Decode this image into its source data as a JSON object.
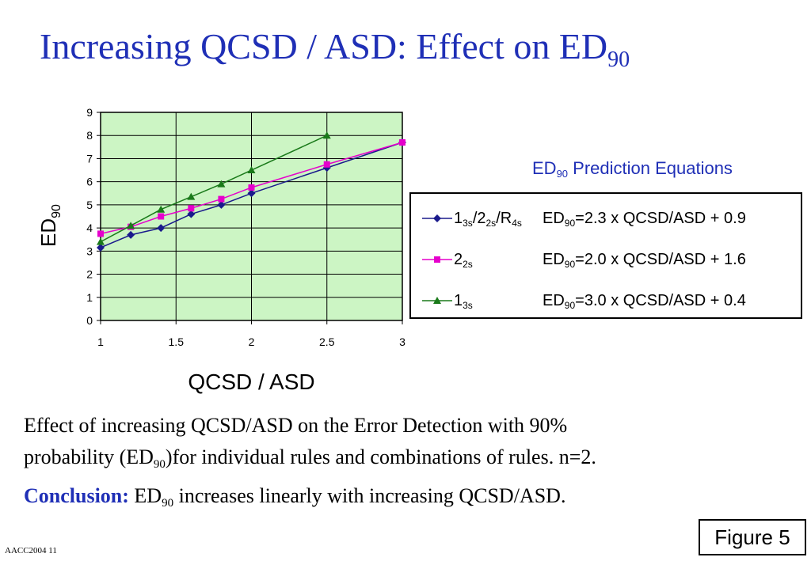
{
  "title": {
    "main": "Increasing QCSD / ASD: Effect on ED",
    "sub": "90"
  },
  "equations_title": {
    "main": "ED",
    "sub": "90",
    "rest": " Prediction Equations"
  },
  "caption": {
    "line1": "Effect of increasing QCSD/ASD on the Error Detection with 90%",
    "line2_a": "probability (ED",
    "line2_sub": "90",
    "line2_b": ")for individual rules and combinations of rules. n=2.",
    "conclusion_label": "Conclusion:",
    "conclusion_a": " ED",
    "conclusion_sub": "90",
    "conclusion_b": " increases linearly with increasing QCSD/ASD."
  },
  "footer": "AACC2004  11",
  "figure_label": "Figure 5",
  "colors": {
    "title": "#1f2fb6",
    "plot_bg": "#ccf5c4",
    "s1": "#1a1a8c",
    "s2": "#e600cc",
    "s3": "#1a7a1a"
  },
  "chart_data": {
    "type": "line",
    "xlabel": "QCSD / ASD",
    "ylabel": {
      "main": "ED",
      "sub": "90"
    },
    "xlim": [
      1,
      3
    ],
    "ylim": [
      0,
      9
    ],
    "xticks": [
      "1",
      "1.5",
      "2",
      "2.5",
      "3"
    ],
    "yticks": [
      "0",
      "1",
      "2",
      "3",
      "4",
      "5",
      "6",
      "7",
      "8",
      "9"
    ],
    "grid": true,
    "legend_position": "right",
    "series": [
      {
        "name_parts": [
          [
            "1",
            "3s"
          ],
          [
            "/2",
            "2s"
          ],
          [
            "/R",
            "4s"
          ]
        ],
        "equation": {
          "main": "ED",
          "sub": "90",
          "rest": "=2.3 x QCSD/ASD + 0.9"
        },
        "marker": "diamond",
        "color": "#1a1a8c",
        "x": [
          1,
          1.2,
          1.4,
          1.6,
          1.8,
          2,
          2.5,
          3
        ],
        "y": [
          3.15,
          3.7,
          4.0,
          4.6,
          5.0,
          5.5,
          6.6,
          7.7
        ]
      },
      {
        "name_parts": [
          [
            "2",
            "2s"
          ]
        ],
        "equation": {
          "main": "ED",
          "sub": "90",
          "rest": "=2.0 x QCSD/ASD + 1.6"
        },
        "marker": "square",
        "color": "#e600cc",
        "x": [
          1,
          1.2,
          1.4,
          1.6,
          1.8,
          2,
          2.5,
          3
        ],
        "y": [
          3.75,
          4.05,
          4.5,
          4.85,
          5.25,
          5.75,
          6.75,
          7.7
        ]
      },
      {
        "name_parts": [
          [
            "1",
            "3s"
          ]
        ],
        "equation": {
          "main": "ED",
          "sub": "90",
          "rest": "=3.0 x QCSD/ASD + 0.4"
        },
        "marker": "triangle",
        "color": "#1a7a1a",
        "x": [
          1,
          1.2,
          1.4,
          1.6,
          1.8,
          2,
          2.5
        ],
        "y": [
          3.4,
          4.1,
          4.8,
          5.35,
          5.9,
          6.5,
          8.0
        ]
      }
    ]
  }
}
